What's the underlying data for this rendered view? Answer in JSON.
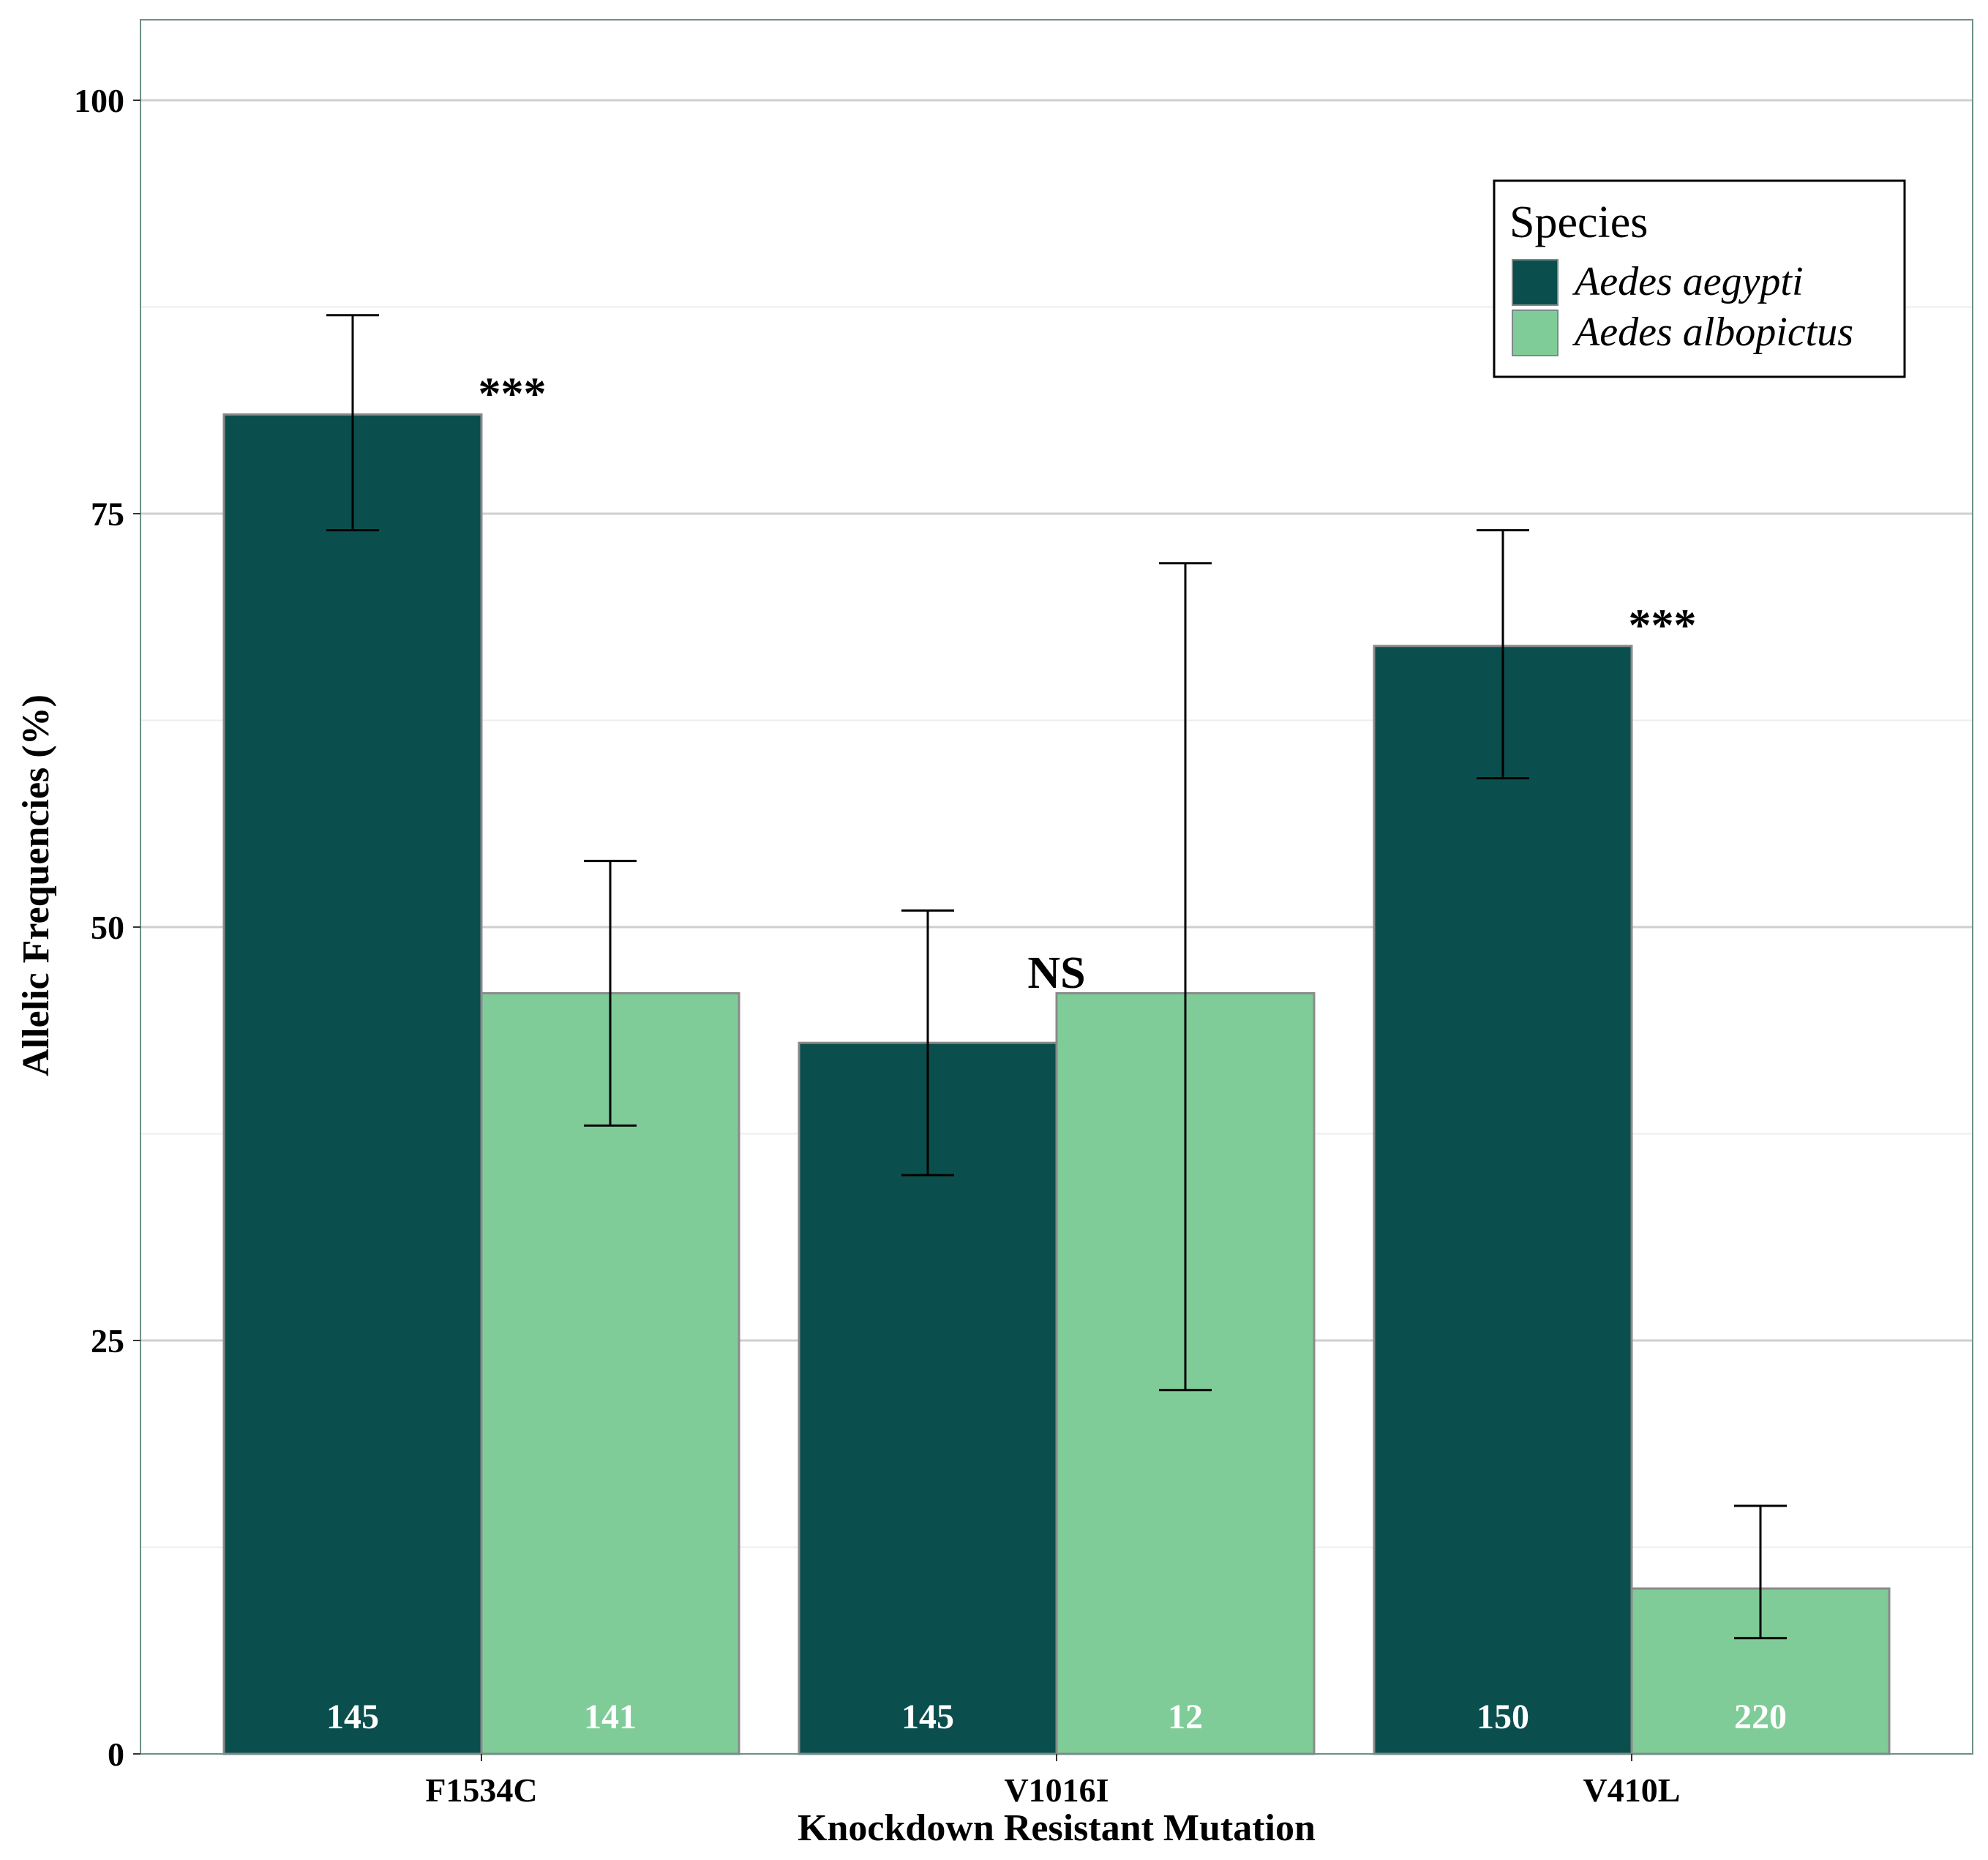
{
  "chart_data": {
    "type": "bar",
    "title": "",
    "xlabel": "Knockdown Resistant Mutation",
    "ylabel": "Allelic Frequencies (%)",
    "ylim": [
      0,
      105
    ],
    "yticks": [
      0,
      25,
      50,
      75,
      100
    ],
    "grid": true,
    "legend_position": "top-right",
    "legend_title": "Species",
    "categories": [
      "F1534C",
      "V1016I",
      "V410L"
    ],
    "series": [
      {
        "name": "Aedes aegypti",
        "color": "#0a4f4d",
        "values": [
          81,
          43,
          67
        ],
        "ci_low": [
          74,
          35,
          59
        ],
        "ci_high": [
          87,
          51,
          74
        ],
        "n": [
          "145",
          "145",
          "150"
        ]
      },
      {
        "name": "Aedes albopictus",
        "color": "#80cc98",
        "values": [
          46,
          46,
          10
        ],
        "ci_low": [
          38,
          22,
          7
        ],
        "ci_high": [
          54,
          72,
          15
        ],
        "n": [
          "141",
          "12",
          "220"
        ]
      }
    ],
    "significance": [
      "***",
      "NS",
      "***"
    ]
  }
}
